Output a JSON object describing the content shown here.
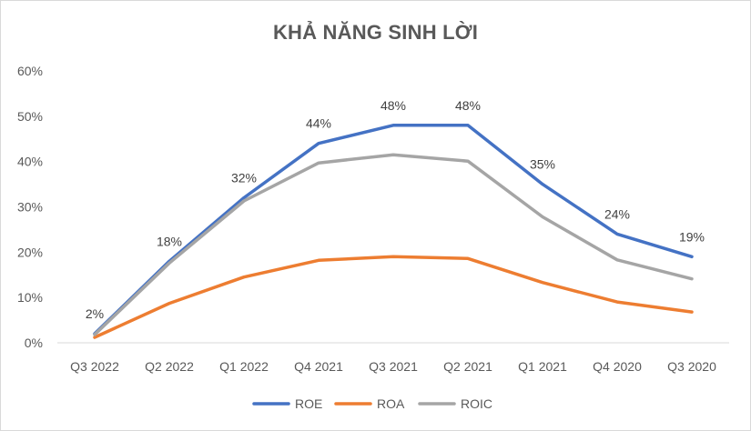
{
  "chart_data": {
    "type": "line",
    "title": "KHẢ NĂNG SINH LỜI",
    "categories": [
      "Q3 2022",
      "Q2 2022",
      "Q1 2022",
      "Q4 2021",
      "Q3 2021",
      "Q2 2021",
      "Q1 2021",
      "Q4 2020",
      "Q3 2020"
    ],
    "series": [
      {
        "name": "ROE",
        "color": "#4472C4",
        "values": [
          2,
          18,
          32,
          44,
          48,
          48,
          35,
          24,
          19
        ]
      },
      {
        "name": "ROA",
        "color": "#ED7D31",
        "values": [
          1.2,
          8.7,
          14.5,
          18.2,
          19.0,
          18.6,
          13.3,
          9.0,
          6.8
        ]
      },
      {
        "name": "ROIC",
        "color": "#A5A5A5",
        "values": [
          1.8,
          17.6,
          31.3,
          39.7,
          41.5,
          40.1,
          27.8,
          18.3,
          14.1
        ]
      }
    ],
    "data_labels": {
      "series": "ROE",
      "labels": [
        "2%",
        "18%",
        "32%",
        "44%",
        "48%",
        "48%",
        "35%",
        "24%",
        "19%"
      ]
    },
    "y_ticks": [
      "0%",
      "10%",
      "20%",
      "30%",
      "40%",
      "50%",
      "60%"
    ],
    "ylim": [
      0,
      60
    ],
    "xlabel": "",
    "ylabel": "",
    "grid": false,
    "legend_position": "bottom"
  }
}
